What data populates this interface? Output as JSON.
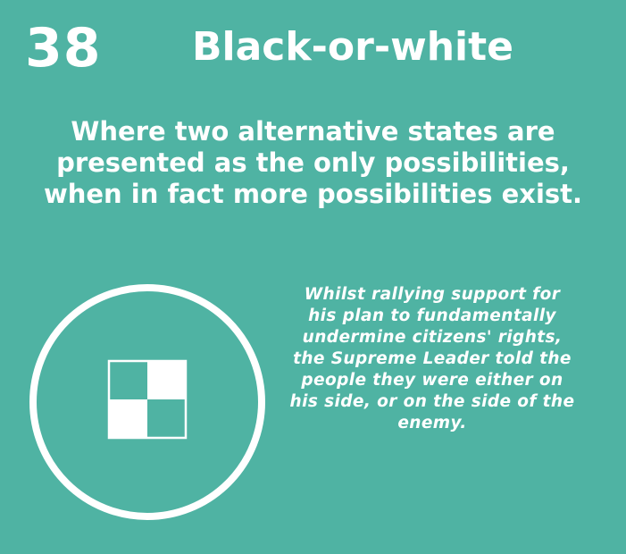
{
  "card": {
    "number": "38",
    "title": "Black-or-white",
    "definition": "Where two alternative states are\npresented as the only possibilities,\nwhen in fact more possibilities exist.",
    "example": "Whilst rallying support for\nhis plan to fundamentally\nundermine citizens' rights,\nthe Supreme Leader told the\npeople they were either on\nhis side, or on the side of the\nenemy.",
    "icon": "checkerboard-circle-icon"
  },
  "colors": {
    "background": "#4fb3a3",
    "foreground": "#ffffff"
  }
}
